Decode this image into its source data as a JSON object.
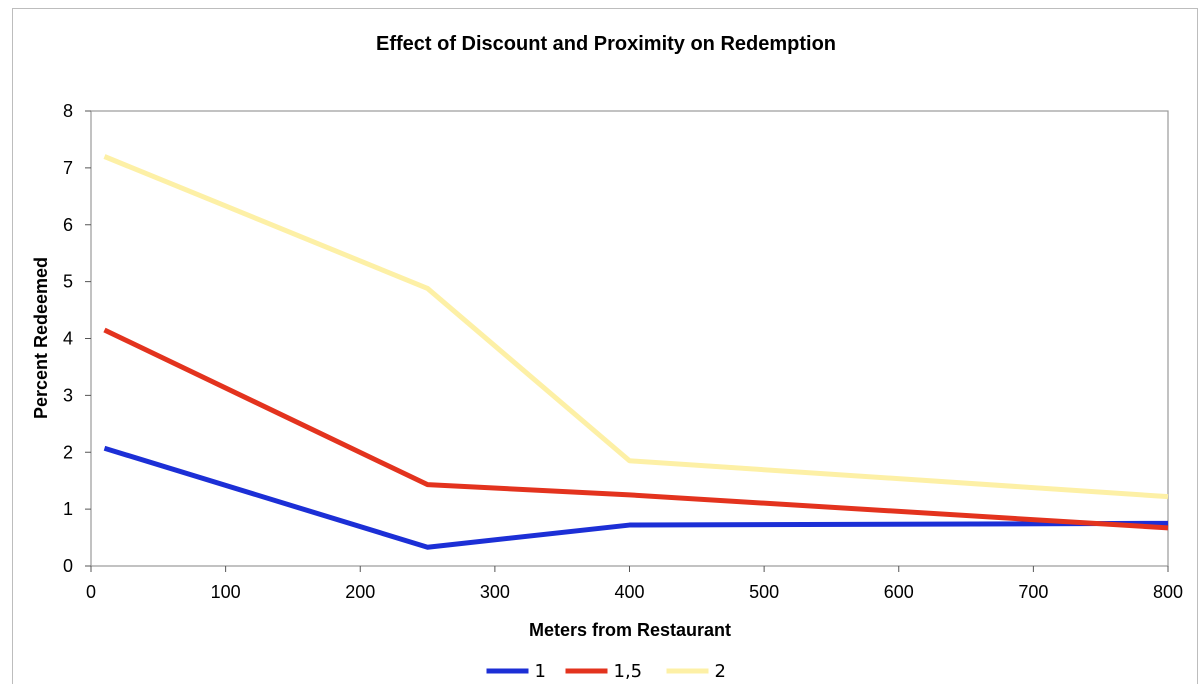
{
  "chart_data": {
    "type": "line",
    "title": "Effect of Discount and Proximity on Redemption",
    "xlabel": "Meters from Restaurant",
    "ylabel": "Percent Redeemed",
    "xlim": [
      0,
      800
    ],
    "ylim": [
      0,
      8
    ],
    "xticks": [
      0,
      100,
      200,
      300,
      400,
      500,
      600,
      700,
      800
    ],
    "yticks": [
      0,
      1,
      2,
      3,
      4,
      5,
      6,
      7,
      8
    ],
    "x": [
      10,
      250,
      400,
      800
    ],
    "series": [
      {
        "name": "1",
        "color": "#1c2fd6",
        "values": [
          2.07,
          0.33,
          0.72,
          0.75
        ]
      },
      {
        "name": "1,5",
        "color": "#e3331e",
        "values": [
          4.15,
          1.43,
          1.25,
          0.67
        ]
      },
      {
        "name": "2",
        "color": "#fdf0a6",
        "values": [
          7.2,
          4.88,
          1.85,
          1.22
        ]
      }
    ],
    "grid": false,
    "legend_position": "bottom"
  }
}
